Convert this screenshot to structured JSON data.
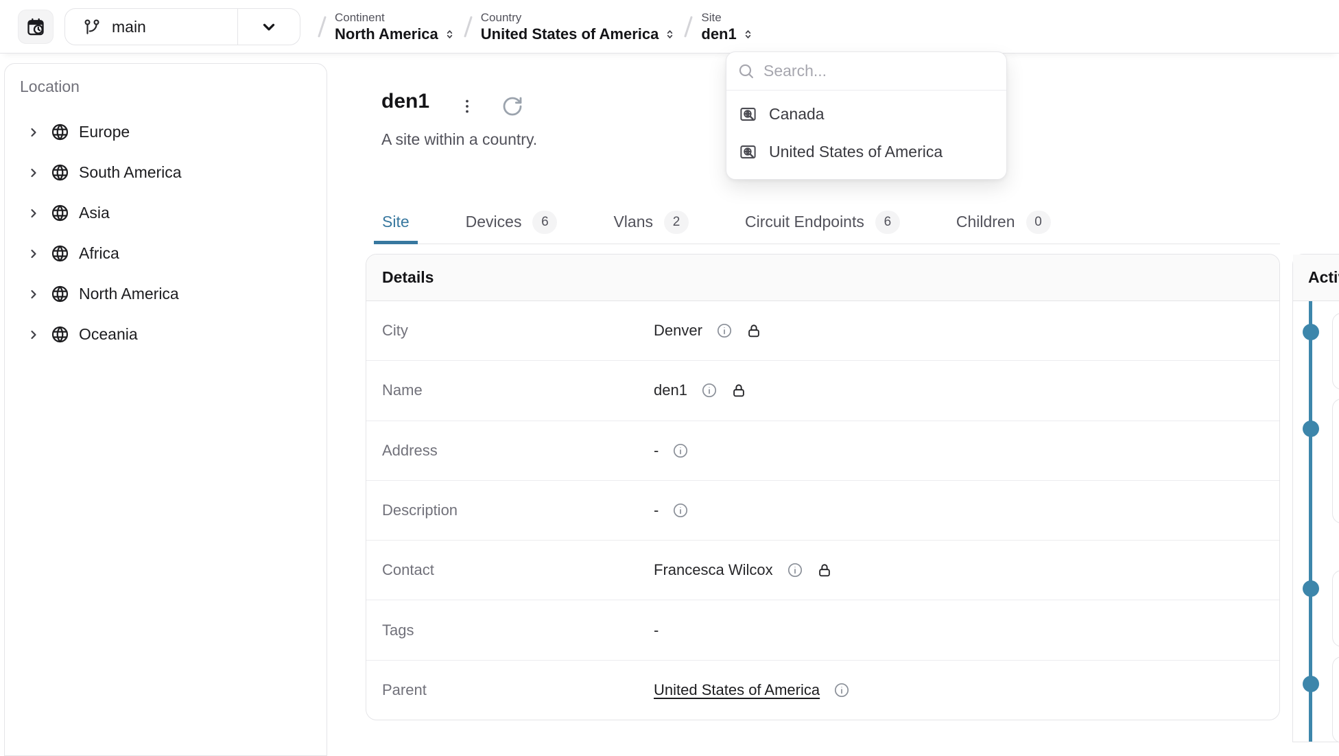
{
  "topbar": {
    "branch": "main",
    "breadcrumbs": [
      {
        "label": "Continent",
        "value": "North America"
      },
      {
        "label": "Country",
        "value": "United States of America"
      },
      {
        "label": "Site",
        "value": "den1"
      }
    ]
  },
  "dropdown": {
    "search_placeholder": "Search...",
    "items": [
      {
        "label": "Canada"
      },
      {
        "label": "United States of America"
      }
    ]
  },
  "sidebar": {
    "title": "Location",
    "items": [
      {
        "label": "Europe"
      },
      {
        "label": "South America"
      },
      {
        "label": "Asia"
      },
      {
        "label": "Africa"
      },
      {
        "label": "North America"
      },
      {
        "label": "Oceania"
      }
    ]
  },
  "page": {
    "title": "den1",
    "subtitle": "A site within a country."
  },
  "tabs": [
    {
      "label": "Site"
    },
    {
      "label": "Devices",
      "count": "6"
    },
    {
      "label": "Vlans",
      "count": "2"
    },
    {
      "label": "Circuit Endpoints",
      "count": "6"
    },
    {
      "label": "Children",
      "count": "0"
    }
  ],
  "details": {
    "title": "Details",
    "rows": [
      {
        "label": "City",
        "value": "Denver"
      },
      {
        "label": "Name",
        "value": "den1"
      },
      {
        "label": "Address",
        "value": "-"
      },
      {
        "label": "Description",
        "value": "-"
      },
      {
        "label": "Contact",
        "value": "Francesca Wilcox"
      },
      {
        "label": "Tags",
        "value": "-"
      },
      {
        "label": "Parent",
        "value": "United States of America"
      }
    ]
  },
  "activity": {
    "title": "Activity",
    "timeline_dots": [
      483,
      624,
      857,
      996
    ]
  },
  "colors": {
    "accent": "#38789f",
    "timeline": "#3d86ab"
  }
}
